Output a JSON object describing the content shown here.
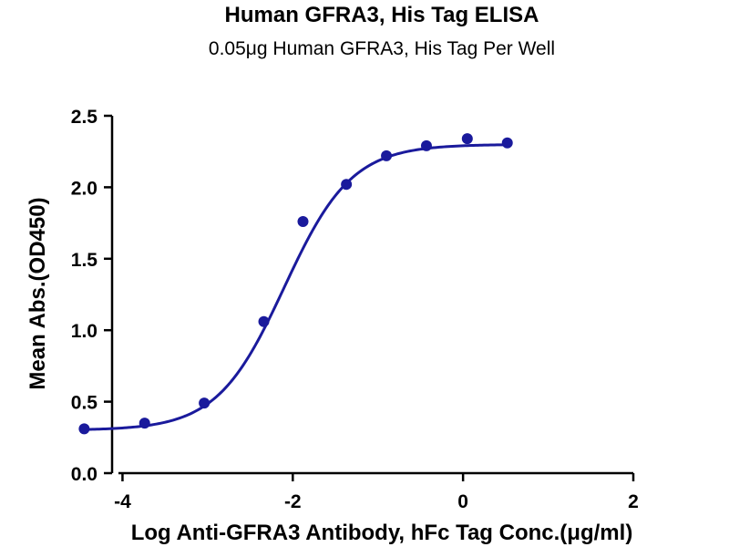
{
  "chart_data": {
    "type": "scatter",
    "title": "Human GFRA3, His Tag ELISA",
    "subtitle": "0.05μg Human GFRA3, His Tag Per Well",
    "xlabel": "Log Anti-GFRA3 Antibody, hFc Tag Conc.(μg/ml)",
    "ylabel": "Mean Abs.(OD450)",
    "xlim": [
      -5,
      2
    ],
    "ylim": [
      0,
      2.5
    ],
    "x_ticks": [
      -4,
      -2,
      0,
      2
    ],
    "y_ticks": [
      0.0,
      0.5,
      1.0,
      1.5,
      2.0,
      2.5
    ],
    "x_tick_labels": [
      "-4",
      "-2",
      "0",
      "2"
    ],
    "y_tick_labels": [
      "0.0",
      "0.5",
      "1.0",
      "1.5",
      "2.0",
      "2.5"
    ],
    "grid": false,
    "series": [
      {
        "x": [
          -4.45,
          -3.74,
          -3.04,
          -2.34,
          -1.88,
          -1.37,
          -0.9,
          -0.43,
          0.05,
          0.52
        ],
        "y": [
          0.31,
          0.35,
          0.49,
          1.06,
          1.76,
          2.02,
          2.22,
          2.29,
          2.34,
          2.31
        ],
        "color": "#1a1a9c",
        "fit": "4PL"
      }
    ],
    "fit_params": {
      "bottom": 0.3,
      "top": 2.3,
      "log_ec50": -2.1,
      "hill_slope": 1.1
    }
  }
}
